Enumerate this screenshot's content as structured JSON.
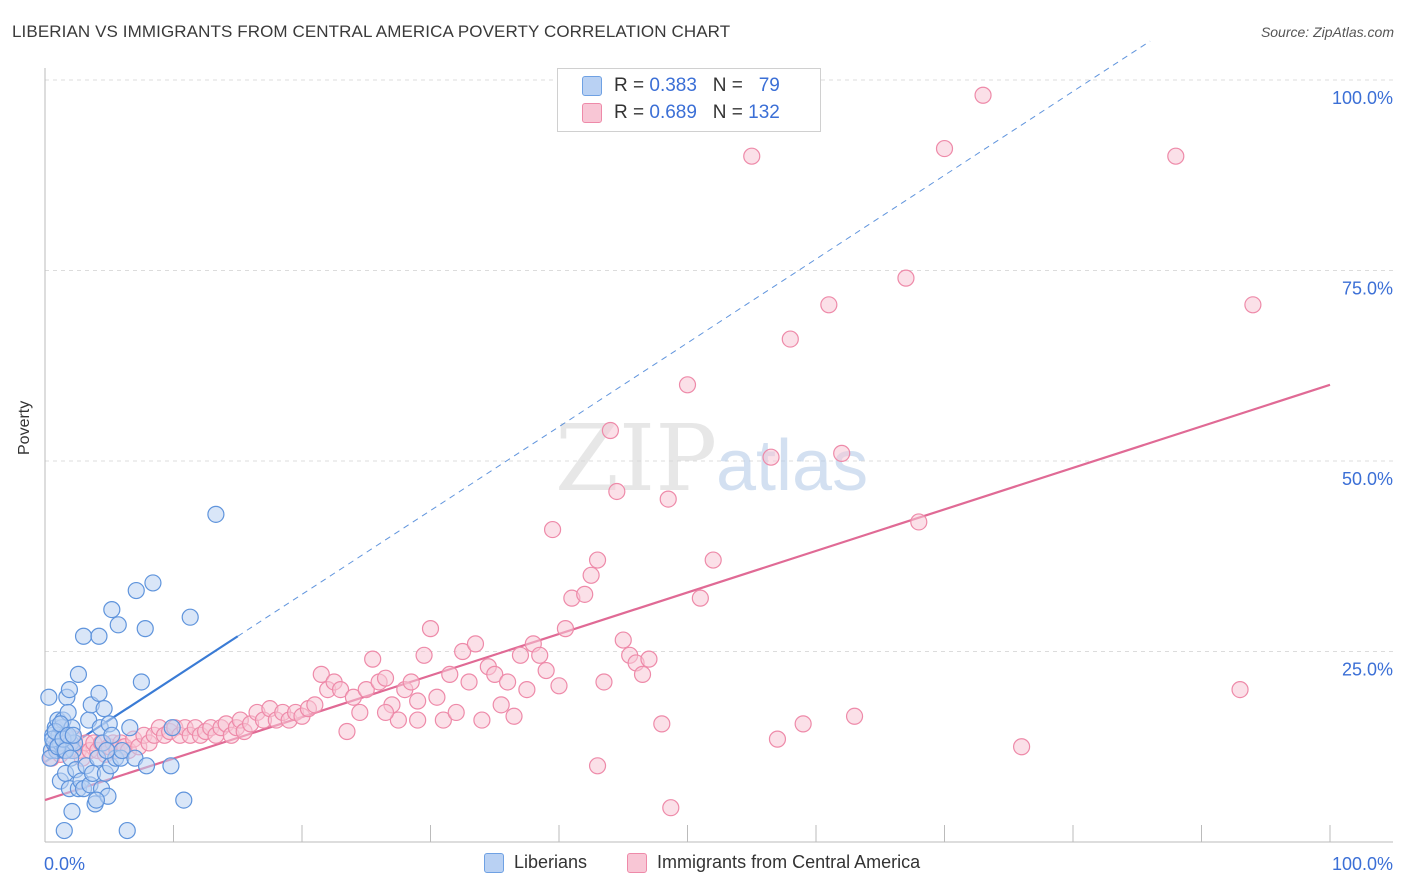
{
  "title": "LIBERIAN VS IMMIGRANTS FROM CENTRAL AMERICA POVERTY CORRELATION CHART",
  "source": "Source: ZipAtlas.com",
  "watermark": {
    "zip": "ZIP",
    "atlas": "atlas"
  },
  "legend": {
    "items": [
      {
        "r_label": "R =",
        "r_value": "0.383",
        "n_label": "N =",
        "n_value": "79",
        "color": "#6fa1e3",
        "fill": "#b9d1f3"
      },
      {
        "r_label": "R =",
        "r_value": "0.689",
        "n_label": "N =",
        "n_value": "132",
        "color": "#ee8aa9",
        "fill": "#f8c6d5"
      }
    ]
  },
  "bottom_legend": {
    "series1": "Liberians",
    "series2": "Immigrants from Central America"
  },
  "colors": {
    "blue": "#3a7bd5",
    "pink": "#e06a95",
    "axis_text": "#3b6fd6",
    "grid": "#dcdcdc"
  },
  "chart_data": {
    "type": "scatter",
    "xlabel": "",
    "ylabel": "Poverty",
    "xlim": [
      0,
      100
    ],
    "ylim": [
      0,
      100
    ],
    "x_tick_labels": [
      "0.0%",
      "100.0%"
    ],
    "y_tick_labels": [
      {
        "value": 25,
        "label": "25.0%"
      },
      {
        "value": 50,
        "label": "50.0%"
      },
      {
        "value": 75,
        "label": "75.0%"
      },
      {
        "value": 100,
        "label": "100.0%"
      }
    ],
    "series": [
      {
        "name": "Liberians",
        "R": 0.383,
        "N": 79,
        "trend": {
          "x0": 0,
          "y0": 10.5,
          "x1": 15,
          "y1": 27,
          "dashed_to_x": 86
        },
        "points": [
          [
            0.3,
            19
          ],
          [
            0.5,
            12
          ],
          [
            0.6,
            14
          ],
          [
            0.7,
            13
          ],
          [
            0.8,
            15
          ],
          [
            0.9,
            12
          ],
          [
            1.0,
            16
          ],
          [
            1.1,
            14
          ],
          [
            1.2,
            13
          ],
          [
            1.3,
            15
          ],
          [
            1.4,
            16
          ],
          [
            1.5,
            12
          ],
          [
            1.6,
            14
          ],
          [
            1.7,
            19
          ],
          [
            1.8,
            17
          ],
          [
            1.9,
            20
          ],
          [
            2.0,
            13
          ],
          [
            2.1,
            15
          ],
          [
            2.2,
            12
          ],
          [
            2.3,
            13
          ],
          [
            0.4,
            11
          ],
          [
            0.6,
            13.5
          ],
          [
            0.8,
            14.5
          ],
          [
            1.0,
            12.5
          ],
          [
            1.2,
            15.5
          ],
          [
            1.4,
            13.5
          ],
          [
            1.6,
            12
          ],
          [
            1.8,
            14
          ],
          [
            2.0,
            11
          ],
          [
            2.2,
            14
          ],
          [
            1.2,
            8
          ],
          [
            1.6,
            9
          ],
          [
            1.9,
            7
          ],
          [
            2.1,
            4
          ],
          [
            2.4,
            9.5
          ],
          [
            2.6,
            7
          ],
          [
            2.8,
            8
          ],
          [
            3.0,
            7
          ],
          [
            3.2,
            10
          ],
          [
            3.5,
            7.5
          ],
          [
            3.7,
            9
          ],
          [
            3.9,
            5
          ],
          [
            4.1,
            11
          ],
          [
            4.4,
            7
          ],
          [
            4.7,
            9
          ],
          [
            4.9,
            6
          ],
          [
            5.1,
            10
          ],
          [
            5.5,
            11
          ],
          [
            5.9,
            11
          ],
          [
            6.4,
            1.5
          ],
          [
            1.5,
            1.5
          ],
          [
            4.0,
            5.5
          ],
          [
            2.6,
            22
          ],
          [
            3.4,
            16
          ],
          [
            3.6,
            18
          ],
          [
            4.2,
            19.5
          ],
          [
            4.3,
            15
          ],
          [
            4.6,
            17.5
          ],
          [
            5.0,
            15.5
          ],
          [
            4.5,
            13
          ],
          [
            4.8,
            12
          ],
          [
            5.2,
            14
          ],
          [
            6.0,
            12
          ],
          [
            6.6,
            15
          ],
          [
            7.0,
            11
          ],
          [
            3.0,
            27
          ],
          [
            4.2,
            27
          ],
          [
            5.2,
            30.5
          ],
          [
            5.7,
            28.5
          ],
          [
            7.1,
            33
          ],
          [
            7.5,
            21
          ],
          [
            7.8,
            28
          ],
          [
            8.4,
            34
          ],
          [
            7.9,
            10
          ],
          [
            9.8,
            10
          ],
          [
            9.9,
            15
          ],
          [
            10.8,
            5.5
          ],
          [
            11.3,
            29.5
          ],
          [
            13.3,
            43
          ]
        ]
      },
      {
        "name": "Immigrants from Central America",
        "R": 0.689,
        "N": 132,
        "trend": {
          "x0": 0,
          "y0": 5.5,
          "x1": 100,
          "y1": 60
        },
        "points": [
          [
            0.5,
            11
          ],
          [
            0.8,
            12.5
          ],
          [
            1.0,
            13
          ],
          [
            1.2,
            11.5
          ],
          [
            1.5,
            12
          ],
          [
            1.8,
            13
          ],
          [
            2.0,
            12
          ],
          [
            2.3,
            13.5
          ],
          [
            2.6,
            12
          ],
          [
            2.9,
            11
          ],
          [
            3.2,
            13
          ],
          [
            3.5,
            12
          ],
          [
            3.8,
            13
          ],
          [
            4.1,
            12
          ],
          [
            4.4,
            13
          ],
          [
            4.7,
            11.5
          ],
          [
            5.0,
            12.5
          ],
          [
            5.3,
            13
          ],
          [
            5.6,
            12
          ],
          [
            5.9,
            13
          ],
          [
            6.2,
            12.5
          ],
          [
            6.5,
            12
          ],
          [
            6.9,
            13.5
          ],
          [
            7.3,
            12.5
          ],
          [
            7.7,
            14
          ],
          [
            8.1,
            13
          ],
          [
            8.5,
            14
          ],
          [
            8.9,
            15
          ],
          [
            9.3,
            14
          ],
          [
            9.7,
            14.5
          ],
          [
            10.1,
            15
          ],
          [
            10.5,
            14
          ],
          [
            10.9,
            15
          ],
          [
            11.3,
            14
          ],
          [
            11.7,
            15
          ],
          [
            12.1,
            14
          ],
          [
            12.5,
            14.5
          ],
          [
            12.9,
            15
          ],
          [
            13.3,
            14
          ],
          [
            13.7,
            15
          ],
          [
            14.1,
            15.5
          ],
          [
            14.5,
            14
          ],
          [
            14.9,
            15
          ],
          [
            15.2,
            16
          ],
          [
            15.5,
            14.5
          ],
          [
            16.0,
            15.5
          ],
          [
            16.5,
            17
          ],
          [
            17.0,
            16
          ],
          [
            17.5,
            17.5
          ],
          [
            18.0,
            16
          ],
          [
            18.5,
            17
          ],
          [
            19.0,
            16
          ],
          [
            19.5,
            17
          ],
          [
            20.0,
            16.5
          ],
          [
            20.5,
            17.5
          ],
          [
            21.0,
            18
          ],
          [
            21.5,
            22
          ],
          [
            22.0,
            20
          ],
          [
            22.5,
            21
          ],
          [
            23.0,
            20
          ],
          [
            23.5,
            14.5
          ],
          [
            24.0,
            19
          ],
          [
            24.5,
            17
          ],
          [
            25.0,
            20
          ],
          [
            25.5,
            24
          ],
          [
            26.0,
            21
          ],
          [
            26.5,
            21.5
          ],
          [
            27.0,
            18
          ],
          [
            27.5,
            16
          ],
          [
            28.0,
            20
          ],
          [
            28.5,
            21
          ],
          [
            29.0,
            18.5
          ],
          [
            29.5,
            24.5
          ],
          [
            30.0,
            28
          ],
          [
            30.5,
            19
          ],
          [
            31.0,
            16
          ],
          [
            31.5,
            22
          ],
          [
            32.0,
            17
          ],
          [
            32.5,
            25
          ],
          [
            33.0,
            21
          ],
          [
            33.5,
            26
          ],
          [
            34.0,
            16
          ],
          [
            34.5,
            23
          ],
          [
            35.0,
            22
          ],
          [
            35.5,
            18
          ],
          [
            36.0,
            21
          ],
          [
            36.5,
            16.5
          ],
          [
            37.0,
            24.5
          ],
          [
            37.5,
            20
          ],
          [
            38.0,
            26
          ],
          [
            38.5,
            24.5
          ],
          [
            39.0,
            22.5
          ],
          [
            39.5,
            41
          ],
          [
            40.0,
            20.5
          ],
          [
            40.5,
            28
          ],
          [
            41.0,
            32
          ],
          [
            42.0,
            32.5
          ],
          [
            42.5,
            35
          ],
          [
            43.0,
            37
          ],
          [
            43.5,
            21
          ],
          [
            44.0,
            54
          ],
          [
            44.5,
            46
          ],
          [
            45.0,
            26.5
          ],
          [
            45.5,
            24.5
          ],
          [
            46.0,
            23.5
          ],
          [
            46.5,
            22
          ],
          [
            47.0,
            24
          ],
          [
            48.0,
            15.5
          ],
          [
            48.5,
            45
          ],
          [
            48.7,
            4.5
          ],
          [
            50.0,
            60
          ],
          [
            51.0,
            32
          ],
          [
            52.0,
            37
          ],
          [
            55.0,
            90
          ],
          [
            56.5,
            50.5
          ],
          [
            57.0,
            13.5
          ],
          [
            58.0,
            66
          ],
          [
            59.0,
            15.5
          ],
          [
            61.0,
            70.5
          ],
          [
            62.0,
            51
          ],
          [
            63.0,
            16.5
          ],
          [
            67.0,
            74
          ],
          [
            68.0,
            42
          ],
          [
            70.0,
            91
          ],
          [
            73.0,
            98
          ],
          [
            76.0,
            12.5
          ],
          [
            88.0,
            90
          ],
          [
            94.0,
            70.5
          ],
          [
            93.0,
            20
          ],
          [
            26.5,
            17
          ],
          [
            29.0,
            16
          ],
          [
            43.0,
            10
          ]
        ]
      }
    ]
  }
}
